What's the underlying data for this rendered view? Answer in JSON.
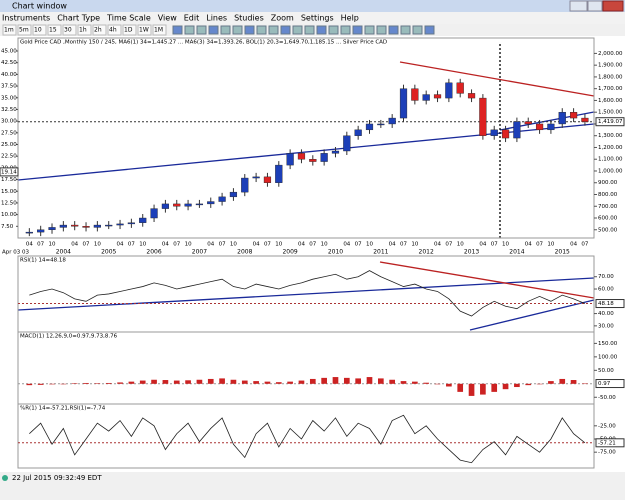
{
  "window": {
    "title": "Chart window",
    "menu": [
      "Instruments",
      "Chart Type",
      "Time Scale",
      "View",
      "Edit",
      "Lines",
      "Studies",
      "Zoom",
      "Settings",
      "Help"
    ],
    "toolbar": [
      "1m",
      "5m",
      "10",
      "15",
      "30",
      "1h",
      "2h",
      "4h",
      "1D",
      "1W",
      "1M"
    ]
  },
  "xlim": [
    2003.0,
    2015.7
  ],
  "x_start": 2003.25,
  "x_step": 0.25,
  "years": [
    2004,
    2005,
    2006,
    2007,
    2008,
    2009,
    2010,
    2011,
    2012,
    2013,
    2014,
    2015
  ],
  "month_labels": [
    {
      "value": 0.25,
      "label": "04"
    },
    {
      "value": 0.5,
      "label": "07"
    },
    {
      "value": 0.75,
      "label": "10"
    }
  ],
  "main": {
    "legend": "Gold Price CAD ,Monthly 150 / 245, MA6(1) 34=1,445.27 ... MA6(3) 34=1,393.26, BOL(1) 20,3=1,649.70,1,185.15 ... Silver Price CAD",
    "ylim": [
      430,
      2080
    ],
    "left_ylim": [
      5,
      46.5
    ],
    "yticks": [
      {
        "value": 500,
        "label": "500.00"
      },
      {
        "value": 600,
        "label": "600.00"
      },
      {
        "value": 700,
        "label": "700.00"
      },
      {
        "value": 800,
        "label": "800.00"
      },
      {
        "value": 900,
        "label": "900.00"
      },
      {
        "value": 1000,
        "label": "1,000.00"
      },
      {
        "value": 1100,
        "label": "1,100.00"
      },
      {
        "value": 1200,
        "label": "1,200.00"
      },
      {
        "value": 1300,
        "label": "1,300.00"
      },
      {
        "value": 1400,
        "label": "1,400.00"
      },
      {
        "value": 1500,
        "label": "1,500.00"
      },
      {
        "value": 1600,
        "label": "1,600.00"
      },
      {
        "value": 1700,
        "label": "1,700.00"
      },
      {
        "value": 1800,
        "label": "1,800.00"
      },
      {
        "value": 1900,
        "label": "1,900.00"
      },
      {
        "value": 2000,
        "label": "2,000.00"
      }
    ],
    "left_ticks": [
      {
        "value": 7.5,
        "label": "7.50"
      },
      {
        "value": 10,
        "label": "10.00"
      },
      {
        "value": 12.5,
        "label": "12.50"
      },
      {
        "value": 15,
        "label": "15.00"
      },
      {
        "value": 17.5,
        "label": "17.50"
      },
      {
        "value": 20,
        "label": "20.00"
      },
      {
        "value": 22.5,
        "label": "22.50"
      },
      {
        "value": 25,
        "label": "25.00"
      },
      {
        "value": 27.5,
        "label": "27.50"
      },
      {
        "value": 30,
        "label": "30.00"
      },
      {
        "value": 32.5,
        "label": "32.50"
      },
      {
        "value": 35,
        "label": "35.00"
      },
      {
        "value": 37.5,
        "label": "37.50"
      },
      {
        "value": 40,
        "label": "40.00"
      },
      {
        "value": 42.5,
        "label": "42.50"
      },
      {
        "value": 45,
        "label": "45.00"
      }
    ],
    "silver_last": {
      "value": 19.14,
      "label": "19.14"
    },
    "values": [
      480,
      500,
      520,
      540,
      530,
      520,
      540,
      540,
      550,
      560,
      600,
      680,
      720,
      700,
      720,
      720,
      740,
      780,
      820,
      940,
      950,
      900,
      1050,
      1150,
      1100,
      1080,
      1150,
      1170,
      1300,
      1350,
      1400,
      1400,
      1450,
      1700,
      1600,
      1650,
      1620,
      1750,
      1660,
      1620,
      1300,
      1350,
      1280,
      1420,
      1400,
      1350,
      1400,
      1500,
      1450,
      1419.07
    ],
    "last_label": "1,419.07",
    "start_label": "Apr 03 03"
  },
  "rsi": {
    "legend": "RSI(1) 14=48.18",
    "ylim": [
      25,
      82
    ],
    "yticks": [
      {
        "value": 30,
        "label": "30.00"
      },
      {
        "value": 40,
        "label": "40.00"
      },
      {
        "value": 60,
        "label": "60.00"
      },
      {
        "value": 70,
        "label": "70.00"
      }
    ],
    "values": [
      55,
      58,
      60,
      57,
      52,
      50,
      55,
      56,
      58,
      60,
      62,
      65,
      63,
      60,
      62,
      64,
      66,
      68,
      62,
      60,
      64,
      62,
      60,
      63,
      65,
      68,
      70,
      72,
      68,
      70,
      75,
      70,
      66,
      62,
      64,
      60,
      58,
      52,
      42,
      38,
      45,
      50,
      46,
      44,
      50,
      54,
      50,
      55,
      52,
      48.18
    ],
    "last_label": "48.18"
  },
  "macd": {
    "legend": "MACD(1) 12,26,9,0=0.97,9.73,8.76",
    "ylim": [
      -75,
      170
    ],
    "yticks": [
      {
        "value": -50,
        "label": "-50.00"
      },
      {
        "value": 50,
        "label": "50.00"
      },
      {
        "value": 100,
        "label": "100.00"
      },
      {
        "value": 150,
        "label": "150.00"
      }
    ],
    "values": [
      -5,
      -4,
      -2,
      0,
      2,
      3,
      2,
      3,
      5,
      8,
      12,
      15,
      14,
      12,
      13,
      15,
      18,
      20,
      15,
      12,
      10,
      8,
      6,
      8,
      12,
      18,
      22,
      25,
      22,
      20,
      25,
      20,
      15,
      10,
      8,
      4,
      0,
      -10,
      -30,
      -45,
      -40,
      -30,
      -20,
      -12,
      -5,
      0,
      10,
      18,
      14,
      0.97
    ],
    "last_label": "0.97"
  },
  "willr": {
    "legend": "%R(1) 14=-57.21,RSI(1)=-7.74",
    "ylim": [
      -105,
      5
    ],
    "yticks": [
      {
        "value": -75,
        "label": "-75.00"
      },
      {
        "value": -50,
        "label": "-50.00"
      },
      {
        "value": -25,
        "label": "-25.00"
      }
    ],
    "values": [
      -40,
      -20,
      -60,
      -30,
      -80,
      -50,
      -20,
      -35,
      -15,
      -45,
      -10,
      -25,
      -70,
      -40,
      -20,
      -55,
      -30,
      -10,
      -60,
      -85,
      -40,
      -20,
      -65,
      -30,
      -50,
      -15,
      -35,
      -10,
      -45,
      -20,
      -30,
      -60,
      -15,
      -5,
      -40,
      -25,
      -50,
      -70,
      -90,
      -95,
      -70,
      -55,
      -80,
      -45,
      -60,
      -75,
      -50,
      -10,
      -40,
      -57.21
    ],
    "last_label": "-57.21"
  },
  "status": "22 Jul 2015 09:32:49 EDT"
}
